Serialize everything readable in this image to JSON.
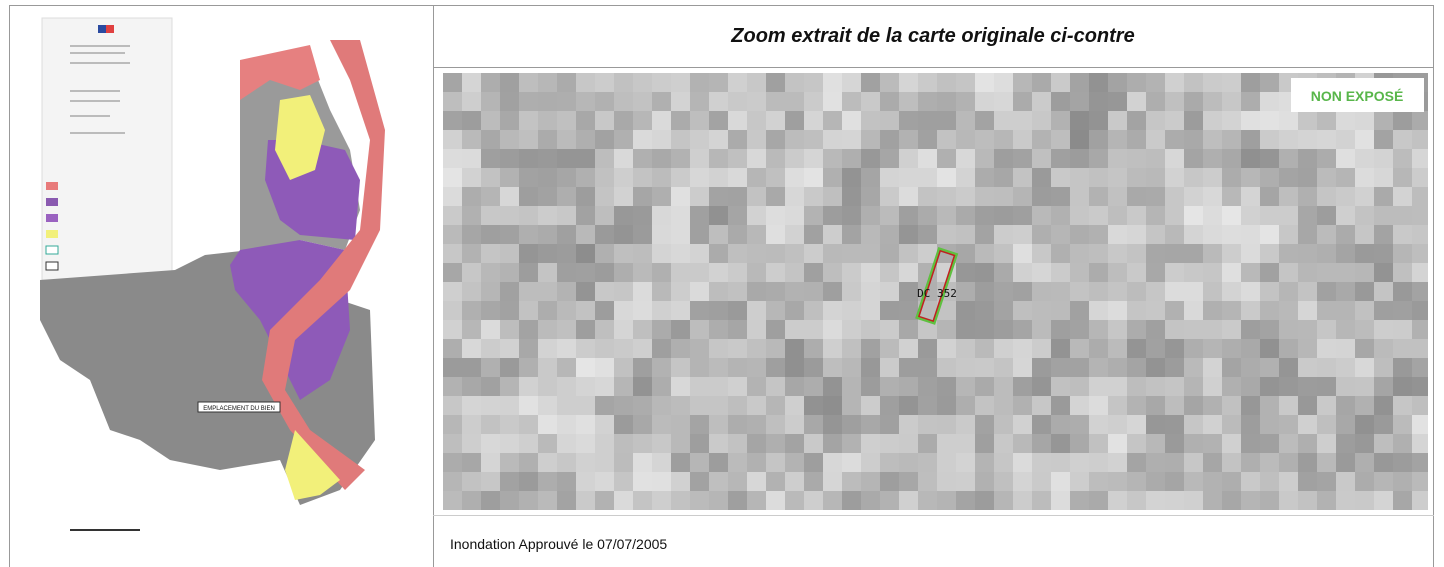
{
  "header": {
    "title": "Zoom extrait de la carte originale ci-contre"
  },
  "map": {
    "location_label": "EMPLACEMENT DU BIEN"
  },
  "zoom": {
    "status": "NON EXPOSÉ",
    "parcel": "DC 352"
  },
  "footer": {
    "text": "Inondation Approuvé le 07/07/2005"
  }
}
